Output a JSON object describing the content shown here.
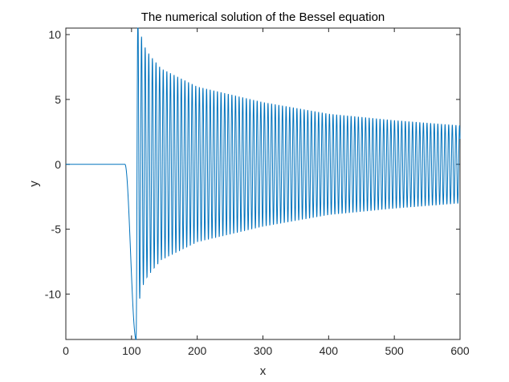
{
  "chart_data": {
    "type": "line",
    "title": "The numerical solution of the Bessel equation",
    "xlabel": "x",
    "ylabel": "y",
    "xlim": [
      0,
      600
    ],
    "ylim": [
      -13.5,
      10.5
    ],
    "xticks": [
      0,
      100,
      200,
      300,
      400,
      500,
      600
    ],
    "xtick_labels": [
      "0",
      "100",
      "200",
      "300",
      "400",
      "500",
      "600"
    ],
    "yticks": [
      -10,
      -5,
      0,
      5,
      10
    ],
    "ytick_labels": [
      "-10",
      "-5",
      "0",
      "5",
      "10"
    ],
    "grid": false,
    "line_color": "#0072BD",
    "axis_color": "#262626",
    "series": [
      {
        "oscillation_start_x": 90,
        "extrema": [
          {
            "x": 107,
            "y": -13.5
          },
          {
            "x": 112,
            "y": 10.5
          },
          {
            "x": 118,
            "y": -9.3
          },
          {
            "x": 124,
            "y": 8.7
          },
          {
            "x": 130,
            "y": -8.3
          },
          {
            "x": 145,
            "y": -7.4
          },
          {
            "x": 200,
            "y": -6.0
          },
          {
            "x": 300,
            "y": -4.8
          },
          {
            "x": 400,
            "y": -3.9
          },
          {
            "x": 500,
            "y": -3.4
          },
          {
            "x": 600,
            "y": 3.0
          }
        ],
        "wavelength_x": 5.5
      }
    ]
  }
}
